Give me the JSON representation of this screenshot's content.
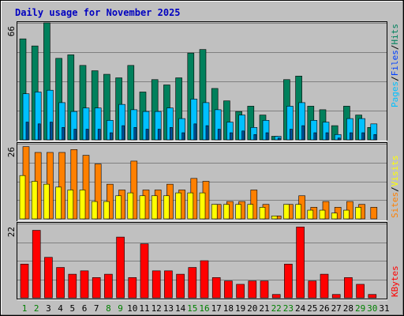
{
  "title": "Daily usage for November 2025",
  "colors": {
    "background": "#c0c0c0",
    "weekend_label": "#008000",
    "weekday_label": "#000000",
    "hits": "#00805c",
    "files": "#00c0ff",
    "pages": "#00509c",
    "visits": "#ff8000",
    "sites": "#ffff00",
    "kbytes": "#ff0000"
  },
  "side_labels": {
    "top": [
      {
        "text": "Hits",
        "color": "#00805c"
      },
      {
        "text": "/",
        "color": "#000000"
      },
      {
        "text": "Files",
        "color": "#0040ff"
      },
      {
        "text": "/",
        "color": "#000000"
      },
      {
        "text": "Pages",
        "color": "#00c0ff"
      }
    ],
    "middle": [
      {
        "text": "Visits",
        "color": "#ffff00"
      },
      {
        "text": "/",
        "color": "#000000"
      },
      {
        "text": "Sites",
        "color": "#ff8000"
      }
    ],
    "bottom": [
      {
        "text": "KBytes",
        "color": "#ff0000"
      }
    ]
  },
  "chart_data": {
    "type": "bar",
    "title": "Daily usage for November 2025",
    "categories": [
      "1",
      "2",
      "3",
      "4",
      "5",
      "6",
      "7",
      "8",
      "9",
      "10",
      "11",
      "12",
      "13",
      "14",
      "15",
      "16",
      "17",
      "18",
      "19",
      "20",
      "21",
      "22",
      "23",
      "24",
      "25",
      "26",
      "27",
      "28",
      "29",
      "30",
      "31"
    ],
    "weekend_days": [
      "1",
      "2",
      "8",
      "9",
      "15",
      "16",
      "22",
      "23",
      "29",
      "30"
    ],
    "panels": [
      {
        "id": "hits-files-pages",
        "ymax_label": "66",
        "ylim": [
          0,
          66
        ],
        "series": [
          {
            "name": "Hits",
            "values": [
              57,
              53,
              66,
              46,
              48,
              42,
              39,
              37,
              35,
              42,
              27,
              34,
              31,
              35,
              49,
              51,
              29,
              22,
              16,
              19,
              14,
              2,
              34,
              36,
              19,
              17,
              8,
              19,
              14,
              7,
              0
            ]
          },
          {
            "name": "Files",
            "values": [
              26,
              27,
              28,
              21,
              16,
              18,
              18,
              11,
              20,
              17,
              16,
              16,
              18,
              12,
              23,
              21,
              17,
              10,
              14,
              7,
              11,
              2,
              19,
              21,
              11,
              10,
              3,
              12,
              12,
              9,
              0
            ]
          },
          {
            "name": "Pages",
            "values": [
              10,
              9,
              10,
              7,
              6,
              6,
              6,
              4,
              8,
              7,
              6,
              6,
              7,
              4,
              9,
              8,
              6,
              4,
              5,
              3,
              4,
              1,
              6,
              8,
              4,
              4,
              1,
              4,
              4,
              3,
              0
            ]
          }
        ]
      },
      {
        "id": "visits-sites",
        "ymax_label": "26",
        "ylim": [
          0,
          26
        ],
        "series": [
          {
            "name": "Visits",
            "values": [
              25,
              23,
              23,
              23,
              24,
              22,
              19,
              12,
              10,
              20,
              10,
              10,
              12,
              10,
              14,
              13,
              5,
              6,
              6,
              10,
              5,
              1,
              5,
              8,
              4,
              6,
              4,
              6,
              5,
              4,
              0
            ]
          },
          {
            "name": "Sites",
            "values": [
              15,
              13,
              12,
              11,
              10,
              10,
              6,
              6,
              8,
              9,
              8,
              8,
              8,
              9,
              9,
              9,
              5,
              5,
              5,
              5,
              4,
              1,
              5,
              5,
              3,
              3,
              2,
              3,
              4,
              0,
              0
            ]
          }
        ]
      },
      {
        "id": "kbytes",
        "ymax_label": "22",
        "ylim": [
          0,
          22
        ],
        "series": [
          {
            "name": "KBytes",
            "values": [
              10,
              20,
              12,
              9,
              7,
              8,
              6,
              7,
              18,
              6,
              16,
              8,
              8,
              7,
              9,
              11,
              6,
              5,
              4,
              5,
              5,
              1,
              10,
              21,
              5,
              7,
              1,
              6,
              4,
              1,
              0
            ]
          }
        ]
      }
    ]
  }
}
